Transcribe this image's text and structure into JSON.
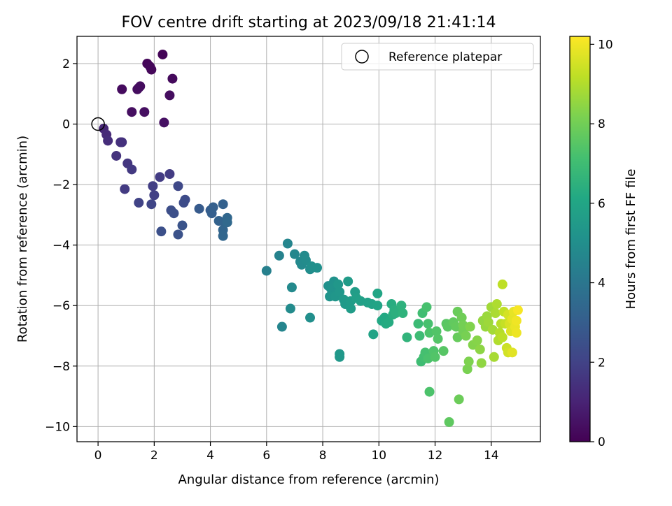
{
  "chart_data": {
    "type": "scatter",
    "title": "FOV centre drift starting at 2023/09/18 21:41:14",
    "xlabel": "Angular distance from reference (arcmin)",
    "ylabel": "Rotation from reference (arcmin)",
    "xlim": [
      -0.75,
      15.75
    ],
    "ylim": [
      -10.5,
      2.9
    ],
    "xticks": [
      0,
      2,
      4,
      6,
      8,
      10,
      12,
      14
    ],
    "yticks": [
      -10,
      -8,
      -6,
      -4,
      -2,
      0,
      2
    ],
    "xtick_labels": [
      "0",
      "2",
      "4",
      "6",
      "8",
      "10",
      "12",
      "14"
    ],
    "ytick_labels": [
      "−10",
      "−8",
      "−6",
      "−4",
      "−2",
      "0",
      "2"
    ],
    "grid": true,
    "legend": {
      "position": "upper-right",
      "entries": [
        "Reference platepar"
      ]
    },
    "reference_point": {
      "x": 0,
      "y": 0,
      "marker": "open-circle"
    },
    "colorbar": {
      "label": "Hours from first FF file",
      "colormap": "viridis",
      "range": [
        0,
        10.2
      ],
      "ticks": [
        0,
        2,
        4,
        6,
        8,
        10
      ],
      "tick_labels": [
        "0",
        "2",
        "4",
        "6",
        "8",
        "10"
      ]
    },
    "series": [
      {
        "points": [
          [
            2.3,
            2.3,
            0.1
          ],
          [
            1.75,
            2.0,
            0.15
          ],
          [
            1.85,
            1.9,
            0.2
          ],
          [
            1.9,
            1.8,
            0.2
          ],
          [
            2.65,
            1.5,
            0.25
          ],
          [
            0.85,
            1.15,
            0.3
          ],
          [
            1.5,
            1.25,
            0.35
          ],
          [
            1.45,
            1.2,
            0.35
          ],
          [
            1.4,
            1.15,
            0.35
          ],
          [
            2.55,
            0.95,
            0.35
          ],
          [
            1.2,
            0.4,
            0.4
          ],
          [
            1.65,
            0.4,
            0.4
          ],
          [
            2.35,
            0.05,
            0.45
          ],
          [
            0.2,
            -0.15,
            1.1
          ],
          [
            0.3,
            -0.35,
            1.2
          ],
          [
            0.35,
            -0.55,
            1.3
          ],
          [
            0.8,
            -0.6,
            1.4
          ],
          [
            0.85,
            -0.6,
            1.45
          ],
          [
            0.65,
            -1.05,
            1.5
          ],
          [
            1.05,
            -1.3,
            1.6
          ],
          [
            1.2,
            -1.5,
            1.7
          ],
          [
            0.95,
            -2.15,
            1.75
          ],
          [
            2.55,
            -1.65,
            1.8
          ],
          [
            2.2,
            -1.75,
            1.8
          ],
          [
            1.95,
            -2.05,
            1.85
          ],
          [
            2.0,
            -2.35,
            1.9
          ],
          [
            1.45,
            -2.6,
            2.0
          ],
          [
            1.9,
            -2.65,
            2.1
          ],
          [
            2.85,
            -2.05,
            2.2
          ],
          [
            3.1,
            -2.5,
            2.3
          ],
          [
            3.05,
            -2.6,
            2.35
          ],
          [
            2.6,
            -2.85,
            2.4
          ],
          [
            2.7,
            -2.95,
            2.45
          ],
          [
            2.25,
            -3.55,
            2.5
          ],
          [
            2.85,
            -3.65,
            2.55
          ],
          [
            3.0,
            -3.35,
            2.6
          ],
          [
            3.6,
            -2.8,
            2.9
          ],
          [
            4.0,
            -2.85,
            3.0
          ],
          [
            4.05,
            -2.95,
            3.05
          ],
          [
            4.1,
            -2.75,
            3.1
          ],
          [
            4.45,
            -2.65,
            3.15
          ],
          [
            4.3,
            -3.2,
            3.2
          ],
          [
            4.5,
            -3.25,
            3.25
          ],
          [
            4.45,
            -3.5,
            3.3
          ],
          [
            4.45,
            -3.7,
            3.35
          ],
          [
            4.6,
            -3.1,
            3.4
          ],
          [
            4.6,
            -3.25,
            3.45
          ],
          [
            6.0,
            -4.85,
            4.4
          ],
          [
            6.45,
            -4.35,
            4.5
          ],
          [
            6.75,
            -3.95,
            4.6
          ],
          [
            7.0,
            -4.3,
            4.7
          ],
          [
            7.2,
            -4.55,
            4.75
          ],
          [
            7.25,
            -4.65,
            4.8
          ],
          [
            7.35,
            -4.35,
            4.85
          ],
          [
            7.4,
            -4.5,
            4.9
          ],
          [
            7.55,
            -4.8,
            4.95
          ],
          [
            7.6,
            -4.7,
            5.0
          ],
          [
            7.8,
            -4.75,
            5.05
          ],
          [
            6.55,
            -6.7,
            4.6
          ],
          [
            6.9,
            -5.4,
            4.8
          ],
          [
            6.85,
            -6.1,
            4.85
          ],
          [
            7.55,
            -6.4,
            5.0
          ],
          [
            8.2,
            -5.35,
            5.1
          ],
          [
            8.4,
            -5.2,
            5.15
          ],
          [
            8.3,
            -5.45,
            5.2
          ],
          [
            8.5,
            -5.3,
            5.2
          ],
          [
            8.25,
            -5.7,
            5.25
          ],
          [
            8.45,
            -5.7,
            5.3
          ],
          [
            8.6,
            -5.55,
            5.35
          ],
          [
            8.55,
            -5.3,
            5.35
          ],
          [
            8.6,
            -7.6,
            5.4
          ],
          [
            8.6,
            -7.7,
            5.4
          ],
          [
            8.75,
            -5.8,
            5.45
          ],
          [
            8.8,
            -5.95,
            5.5
          ],
          [
            8.9,
            -5.2,
            5.55
          ],
          [
            9.0,
            -5.85,
            5.6
          ],
          [
            9.0,
            -6.1,
            5.6
          ],
          [
            9.15,
            -5.55,
            5.65
          ],
          [
            9.2,
            -5.75,
            5.7
          ],
          [
            9.35,
            -5.85,
            5.75
          ],
          [
            9.6,
            -5.9,
            5.8
          ],
          [
            9.75,
            -5.95,
            5.85
          ],
          [
            9.8,
            -6.95,
            5.9
          ],
          [
            9.95,
            -6.0,
            5.95
          ],
          [
            9.95,
            -5.6,
            6.0
          ],
          [
            10.1,
            -6.5,
            6.1
          ],
          [
            10.2,
            -6.4,
            6.15
          ],
          [
            10.25,
            -6.6,
            6.2
          ],
          [
            10.35,
            -6.55,
            6.25
          ],
          [
            10.45,
            -5.95,
            6.3
          ],
          [
            10.5,
            -6.3,
            6.35
          ],
          [
            10.55,
            -6.15,
            6.4
          ],
          [
            10.6,
            -6.25,
            6.45
          ],
          [
            10.8,
            -6.0,
            6.5
          ],
          [
            10.85,
            -6.25,
            6.55
          ],
          [
            11.0,
            -7.05,
            6.6
          ],
          [
            11.4,
            -6.6,
            6.9
          ],
          [
            11.45,
            -7.0,
            6.95
          ],
          [
            11.5,
            -7.85,
            7.0
          ],
          [
            11.55,
            -6.25,
            7.05
          ],
          [
            11.6,
            -7.7,
            7.1
          ],
          [
            11.65,
            -7.55,
            7.15
          ],
          [
            11.7,
            -6.05,
            7.2
          ],
          [
            11.75,
            -6.6,
            7.2
          ],
          [
            11.75,
            -7.75,
            7.25
          ],
          [
            11.8,
            -8.85,
            7.3
          ],
          [
            11.8,
            -6.9,
            7.3
          ],
          [
            11.95,
            -7.5,
            7.35
          ],
          [
            12.0,
            -7.7,
            7.4
          ],
          [
            12.05,
            -6.85,
            7.4
          ],
          [
            12.1,
            -7.1,
            7.45
          ],
          [
            12.3,
            -7.5,
            7.5
          ],
          [
            12.4,
            -6.6,
            7.55
          ],
          [
            12.45,
            -6.7,
            7.6
          ],
          [
            12.5,
            -9.85,
            7.65
          ],
          [
            12.65,
            -6.55,
            7.7
          ],
          [
            12.75,
            -6.7,
            7.75
          ],
          [
            12.8,
            -7.05,
            7.8
          ],
          [
            12.8,
            -6.2,
            7.85
          ],
          [
            12.85,
            -9.1,
            7.9
          ],
          [
            12.95,
            -6.4,
            7.95
          ],
          [
            13.0,
            -6.85,
            8.0
          ],
          [
            13.0,
            -6.65,
            8.05
          ],
          [
            13.1,
            -7.0,
            8.1
          ],
          [
            13.15,
            -8.1,
            8.15
          ],
          [
            13.2,
            -7.85,
            8.2
          ],
          [
            13.25,
            -6.7,
            8.25
          ],
          [
            13.35,
            -7.3,
            8.3
          ],
          [
            13.5,
            -7.15,
            8.35
          ],
          [
            13.6,
            -7.45,
            8.45
          ],
          [
            13.65,
            -7.9,
            8.5
          ],
          [
            13.7,
            -6.5,
            8.55
          ],
          [
            13.8,
            -6.7,
            8.6
          ],
          [
            13.85,
            -6.35,
            8.65
          ],
          [
            13.9,
            -6.55,
            8.7
          ],
          [
            14.0,
            -6.05,
            8.75
          ],
          [
            14.05,
            -6.8,
            8.8
          ],
          [
            14.1,
            -7.7,
            8.85
          ],
          [
            14.15,
            -6.25,
            8.9
          ],
          [
            14.2,
            -5.95,
            8.95
          ],
          [
            14.25,
            -7.15,
            9.0
          ],
          [
            14.3,
            -6.9,
            9.05
          ],
          [
            14.35,
            -6.6,
            9.1
          ],
          [
            14.4,
            -7.05,
            9.15
          ],
          [
            14.4,
            -5.3,
            9.2
          ],
          [
            14.45,
            -6.2,
            9.25
          ],
          [
            14.5,
            -6.6,
            9.3
          ],
          [
            14.55,
            -7.4,
            9.4
          ],
          [
            14.6,
            -7.55,
            9.5
          ],
          [
            14.6,
            -6.3,
            9.55
          ],
          [
            14.65,
            -6.6,
            9.6
          ],
          [
            14.7,
            -6.85,
            9.7
          ],
          [
            14.75,
            -7.55,
            9.75
          ],
          [
            14.75,
            -6.45,
            9.8
          ],
          [
            14.8,
            -6.2,
            9.85
          ],
          [
            14.85,
            -6.7,
            9.9
          ],
          [
            14.9,
            -6.9,
            9.95
          ],
          [
            14.9,
            -6.5,
            10.0
          ],
          [
            14.95,
            -6.15,
            10.1
          ]
        ]
      }
    ]
  }
}
